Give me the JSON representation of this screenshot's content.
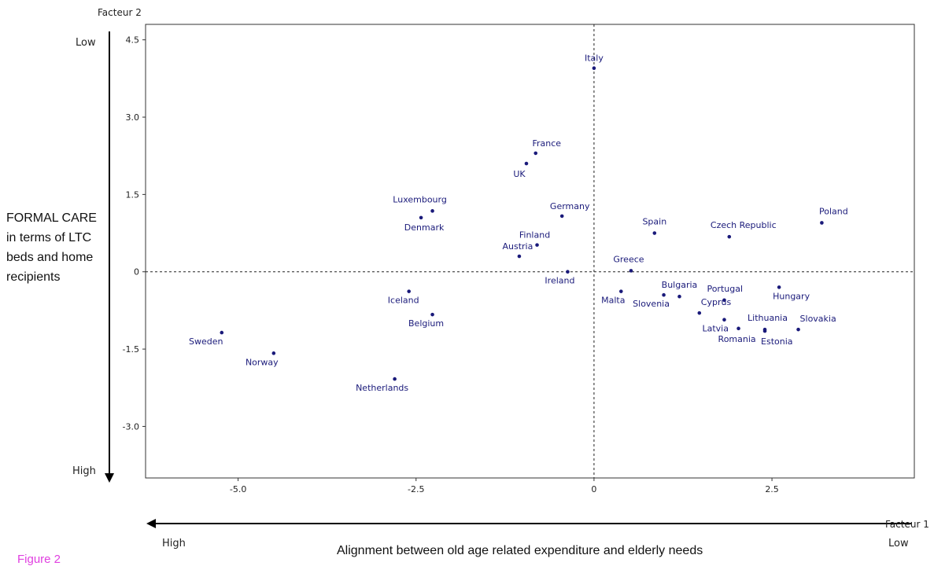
{
  "chart_data": {
    "type": "scatter",
    "xlabel": "Facteur 1",
    "ylabel": "Facteur 2",
    "xlim": [
      -6.3,
      4.5
    ],
    "ylim": [
      -4.0,
      4.8
    ],
    "xticks": [
      -5.0,
      -2.5,
      0,
      2.5
    ],
    "yticks": [
      4.5,
      3.0,
      1.5,
      0,
      -1.5,
      -3.0
    ],
    "xtick_labels": [
      "-5.0",
      "-2.5",
      "0",
      "2.5"
    ],
    "ytick_labels": [
      "4.5",
      "3.0",
      "1.5",
      "0",
      "-1.5",
      "-3.0"
    ],
    "reference_lines": {
      "x": 0,
      "y": 0
    },
    "points": [
      {
        "label": "Italy",
        "x": 0.0,
        "y": 3.95
      },
      {
        "label": "France",
        "x": -0.82,
        "y": 2.3
      },
      {
        "label": "UK",
        "x": -0.95,
        "y": 2.1
      },
      {
        "label": "Luxembourg",
        "x": -2.27,
        "y": 1.18
      },
      {
        "label": "Denmark",
        "x": -2.43,
        "y": 1.05
      },
      {
        "label": "Germany",
        "x": -0.45,
        "y": 1.08
      },
      {
        "label": "Finland",
        "x": -0.8,
        "y": 0.52
      },
      {
        "label": "Austria",
        "x": -1.05,
        "y": 0.3
      },
      {
        "label": "Ireland",
        "x": -0.37,
        "y": 0.0
      },
      {
        "label": "Spain",
        "x": 0.85,
        "y": 0.75
      },
      {
        "label": "Czech Republic",
        "x": 1.9,
        "y": 0.68
      },
      {
        "label": "Poland",
        "x": 3.2,
        "y": 0.95
      },
      {
        "label": "Greece",
        "x": 0.52,
        "y": 0.02
      },
      {
        "label": "Iceland",
        "x": -2.6,
        "y": -0.38
      },
      {
        "label": "Belgium",
        "x": -2.27,
        "y": -0.83
      },
      {
        "label": "Sweden",
        "x": -5.23,
        "y": -1.18
      },
      {
        "label": "Norway",
        "x": -4.5,
        "y": -1.58
      },
      {
        "label": "Netherlands",
        "x": -2.8,
        "y": -2.08
      },
      {
        "label": "Malta",
        "x": 0.38,
        "y": -0.38
      },
      {
        "label": "Slovenia",
        "x": 0.98,
        "y": -0.45
      },
      {
        "label": "Bulgaria",
        "x": 1.2,
        "y": -0.48
      },
      {
        "label": "Cyprus",
        "x": 1.48,
        "y": -0.8
      },
      {
        "label": "Portugal",
        "x": 1.83,
        "y": -0.55
      },
      {
        "label": "Hungary",
        "x": 2.6,
        "y": -0.3
      },
      {
        "label": "Latvia",
        "x": 1.83,
        "y": -0.93
      },
      {
        "label": "Romania",
        "x": 2.03,
        "y": -1.1
      },
      {
        "label": "Lithuania",
        "x": 2.4,
        "y": -1.12
      },
      {
        "label": "Estonia",
        "x": 2.4,
        "y": -1.15
      },
      {
        "label": "Slovakia",
        "x": 2.87,
        "y": -1.12
      }
    ],
    "colors": {
      "points": "#1a1a7a",
      "labels": "#1a1a7a",
      "axes": "#000000",
      "background": "#ffffff"
    }
  },
  "annotations": {
    "left_title": "FORMAL CARE in terms of LTC beds and home recipients",
    "low_top": "Low",
    "high_bottom": "High",
    "high_left": "High",
    "low_right": "Low",
    "x_title": "Alignment between old age related expenditure and elderly needs",
    "figure_caption": "Figure 2",
    "y_axis_name": "Facteur 2",
    "x_axis_name": "Facteur 1"
  }
}
